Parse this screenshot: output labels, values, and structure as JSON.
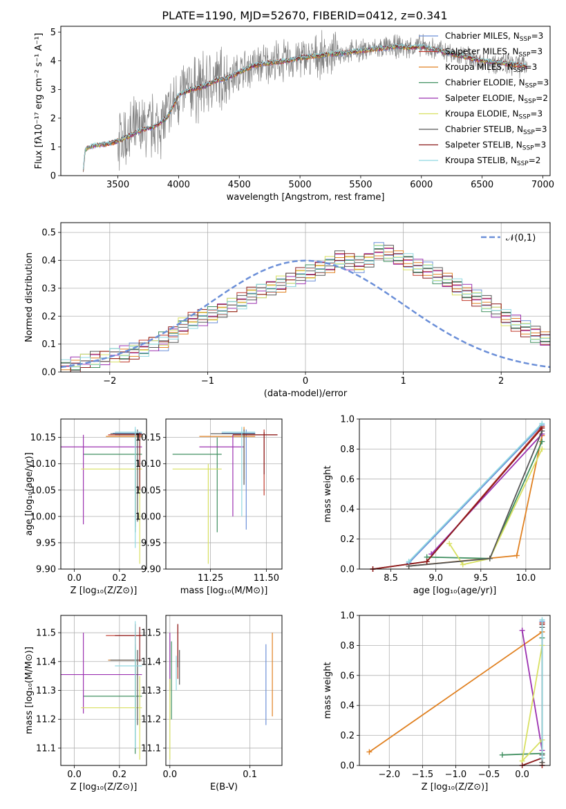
{
  "figure": {
    "title": "PLATE=1190, MJD=52670, FIBERID=0412, z=0.341",
    "fit_names": [
      "Chabrier MILES",
      "Salpeter MILES",
      "Kroupa MILES",
      "Chabrier ELODIE",
      "Salpeter ELODIE",
      "Kroupa ELODIE",
      "Chabrier STELIB",
      "Salpeter STELIB",
      "Kroupa STELIB"
    ],
    "fit_nssp": [
      3,
      3,
      3,
      3,
      2,
      3,
      3,
      3,
      2
    ],
    "fit_colors": [
      "#6b8fd8",
      "#c0392b",
      "#e08020",
      "#3f8f5f",
      "#9b30b0",
      "#d8e060",
      "#555555",
      "#8b1a1a",
      "#8fd8e0"
    ],
    "data_color": "#808080"
  },
  "chart_data": [
    {
      "id": "spectrum",
      "type": "line",
      "xlabel": "wavelength [Angstrom, rest frame]",
      "ylabel": "Flux [fλ10⁻¹⁷ erg cm⁻² s⁻¹ A⁻¹]",
      "xlim": [
        3030,
        7060
      ],
      "ylim": [
        0,
        5.2
      ],
      "xticks": [
        3500,
        4000,
        4500,
        5000,
        5500,
        6000,
        6500,
        7000
      ],
      "yticks": [
        0,
        1,
        2,
        3,
        4,
        5
      ],
      "grid": false,
      "legend": "right",
      "model_x": [
        3210,
        3230,
        3300,
        3400,
        3500,
        3600,
        3700,
        3800,
        3900,
        3950,
        4000,
        4100,
        4200,
        4300,
        4400,
        4500,
        4600,
        4700,
        4800,
        4900,
        5000,
        5100,
        5200,
        5300,
        5400,
        5500,
        5600,
        5700,
        5800,
        5900,
        6000,
        6100,
        6200,
        6300,
        6400,
        6500,
        6600,
        6700,
        6800,
        6870
      ],
      "model_y": [
        0.0,
        0.9,
        1.05,
        1.1,
        1.2,
        1.4,
        1.6,
        1.7,
        2.0,
        2.4,
        2.8,
        3.0,
        3.1,
        3.3,
        3.4,
        3.6,
        3.8,
        3.9,
        3.95,
        4.0,
        4.1,
        4.15,
        4.2,
        4.25,
        4.3,
        4.35,
        4.4,
        4.45,
        4.5,
        4.45,
        4.5,
        4.4,
        4.3,
        4.2,
        4.1,
        4.0,
        3.95,
        3.9,
        3.85,
        3.8
      ]
    },
    {
      "id": "residuals",
      "type": "histogram",
      "xlabel": "(data-model)/error",
      "ylabel": "Normed distribution",
      "xlim": [
        -2.5,
        2.5
      ],
      "ylim": [
        0,
        0.535
      ],
      "xticks": [
        -2,
        -1,
        0,
        1,
        2
      ],
      "yticks": [
        0.0,
        0.1,
        0.2,
        0.3,
        0.4,
        0.5
      ],
      "grid": true,
      "legend": "top-right",
      "legend_label": "𝒩(0,1)",
      "bin_width": 0.1,
      "series": [
        {
          "values": [
            0.02,
            0.03,
            0.04,
            0.05,
            0.05,
            0.06,
            0.07,
            0.08,
            0.08,
            0.1,
            0.1,
            0.13,
            0.16,
            0.18,
            0.19,
            0.2,
            0.22,
            0.24,
            0.25,
            0.27,
            0.29,
            0.3,
            0.31,
            0.33,
            0.34,
            0.35,
            0.37,
            0.38,
            0.41,
            0.39,
            0.38,
            0.4,
            0.44,
            0.43,
            0.41,
            0.4,
            0.38,
            0.37,
            0.35,
            0.33,
            0.31,
            0.29,
            0.27,
            0.25,
            0.22,
            0.2,
            0.18,
            0.16,
            0.14,
            0.12
          ]
        },
        {
          "values": [
            0.01,
            0.02,
            0.04,
            0.04,
            0.05,
            0.06,
            0.06,
            0.07,
            0.09,
            0.1,
            0.12,
            0.15,
            0.17,
            0.19,
            0.2,
            0.21,
            0.23,
            0.24,
            0.26,
            0.28,
            0.29,
            0.31,
            0.32,
            0.33,
            0.35,
            0.36,
            0.38,
            0.39,
            0.4,
            0.4,
            0.39,
            0.41,
            0.43,
            0.42,
            0.4,
            0.39,
            0.37,
            0.36,
            0.34,
            0.32,
            0.3,
            0.28,
            0.26,
            0.24,
            0.22,
            0.19,
            0.17,
            0.15,
            0.13,
            0.11
          ]
        }
      ]
    },
    {
      "id": "age-vs-Z",
      "type": "errorbar",
      "xlabel": "Z [log₁₀(Z/Z⊙)]",
      "ylabel": "age  [log₁₀(age/yr)]",
      "xlim": [
        -0.06,
        0.32
      ],
      "ylim": [
        9.9,
        10.185
      ],
      "xticks": [
        0.0,
        0.2
      ],
      "yticks": [
        9.9,
        9.95,
        10.0,
        10.05,
        10.1,
        10.15
      ],
      "grid": true,
      "points": [
        {
          "x": 0.27,
          "y": 10.158,
          "x_lo": 0.17,
          "x_hi": 0.3,
          "y_lo": 9.98,
          "y_hi": 10.165
        },
        {
          "x": 0.27,
          "y": 10.155,
          "x_lo": 0.15,
          "x_hi": 0.3,
          "y_lo": 10.0,
          "y_hi": 10.16
        },
        {
          "x": 0.27,
          "y": 10.152,
          "x_lo": 0.14,
          "x_hi": 0.3,
          "y_lo": 10.01,
          "y_hi": 10.16
        },
        {
          "x": 0.27,
          "y": 10.118,
          "x_lo": 0.04,
          "x_hi": 0.3,
          "y_lo": 9.97,
          "y_hi": 10.15
        },
        {
          "x": 0.04,
          "y": 10.132,
          "x_lo": -0.06,
          "x_hi": 0.3,
          "y_lo": 9.985,
          "y_hi": 10.155
        },
        {
          "x": 0.29,
          "y": 10.09,
          "x_lo": 0.03,
          "x_hi": 0.3,
          "y_lo": 9.91,
          "y_hi": 10.1
        },
        {
          "x": 0.28,
          "y": 10.157,
          "x_lo": 0.16,
          "x_hi": 0.3,
          "y_lo": 9.99,
          "y_hi": 10.165
        },
        {
          "x": 0.29,
          "y": 10.155,
          "x_lo": 0.18,
          "x_hi": 0.3,
          "y_lo": 10.05,
          "y_hi": 10.16
        },
        {
          "x": 0.27,
          "y": 10.16,
          "x_lo": 0.18,
          "x_hi": 0.3,
          "y_lo": 9.94,
          "y_hi": 10.17
        }
      ]
    },
    {
      "id": "age-vs-mass",
      "type": "errorbar",
      "xlabel": "mass [log₁₀(M/M⊙)]",
      "ylabel": "",
      "xlim": [
        11.05,
        11.57
      ],
      "ylim": [
        9.9,
        10.185
      ],
      "xticks": [
        11.25,
        11.5
      ],
      "yticks": [
        9.9,
        9.95,
        10.0,
        10.05,
        10.1,
        10.15
      ],
      "grid": true,
      "points": [
        {
          "x": 11.41,
          "y": 10.158,
          "x_lo": 11.3,
          "x_hi": 11.45,
          "y_lo": 9.975,
          "y_hi": 10.165
        },
        {
          "x": 11.49,
          "y": 10.155,
          "x_lo": 11.35,
          "x_hi": 11.55,
          "y_lo": 10.04,
          "y_hi": 10.165
        },
        {
          "x": 11.4,
          "y": 10.152,
          "x_lo": 11.2,
          "x_hi": 11.45,
          "y_lo": 10.07,
          "y_hi": 10.17
        },
        {
          "x": 11.28,
          "y": 10.118,
          "x_lo": 11.08,
          "x_hi": 11.3,
          "y_lo": 9.97,
          "y_hi": 10.15
        },
        {
          "x": 11.35,
          "y": 10.132,
          "x_lo": 11.2,
          "x_hi": 11.4,
          "y_lo": 10.0,
          "y_hi": 10.155
        },
        {
          "x": 11.24,
          "y": 10.09,
          "x_lo": 11.08,
          "x_hi": 11.3,
          "y_lo": 9.91,
          "y_hi": 10.1
        },
        {
          "x": 11.4,
          "y": 10.157,
          "x_lo": 11.25,
          "x_hi": 11.45,
          "y_lo": 10.06,
          "y_hi": 10.165
        },
        {
          "x": 11.49,
          "y": 10.155,
          "x_lo": 11.35,
          "x_hi": 11.55,
          "y_lo": 10.08,
          "y_hi": 10.16
        },
        {
          "x": 11.39,
          "y": 10.16,
          "x_lo": 11.3,
          "x_hi": 11.45,
          "y_lo": 10.0,
          "y_hi": 10.17
        }
      ]
    },
    {
      "id": "weight-vs-age",
      "type": "line",
      "xlabel": "age  [log₁₀(age/yr)]",
      "ylabel": "mass weight",
      "xlim": [
        8.15,
        10.27
      ],
      "ylim": [
        0,
        1
      ],
      "xticks": [
        8.5,
        9.0,
        9.5,
        10.0
      ],
      "yticks": [
        0.0,
        0.2,
        0.4,
        0.6,
        0.8,
        1.0
      ],
      "grid": true,
      "series": [
        {
          "x": [
            8.7,
            10.18
          ],
          "y": [
            0.04,
            0.96
          ]
        },
        {
          "x": [
            8.3,
            8.9,
            10.18
          ],
          "y": [
            0.0,
            0.05,
            0.95
          ]
        },
        {
          "x": [
            8.7,
            9.9,
            10.18
          ],
          "y": [
            0.02,
            0.09,
            0.89
          ]
        },
        {
          "x": [
            8.9,
            9.6,
            10.18
          ],
          "y": [
            0.08,
            0.07,
            0.85
          ]
        },
        {
          "x": [
            8.95,
            10.18
          ],
          "y": [
            0.1,
            0.9
          ]
        },
        {
          "x": [
            9.15,
            9.3,
            9.6,
            10.18
          ],
          "y": [
            0.17,
            0.03,
            0.07,
            0.8
          ]
        },
        {
          "x": [
            8.7,
            9.6,
            10.18
          ],
          "y": [
            0.02,
            0.07,
            0.92
          ]
        },
        {
          "x": [
            8.3,
            8.9,
            10.18
          ],
          "y": [
            0.0,
            0.05,
            0.94
          ]
        },
        {
          "x": [
            8.7,
            10.18
          ],
          "y": [
            0.05,
            0.97
          ]
        }
      ]
    },
    {
      "id": "mass-vs-Z",
      "type": "errorbar",
      "xlabel": "Z [log₁₀(Z/Z⊙)]",
      "ylabel": "mass [log₁₀(M/M⊙)]",
      "xlim": [
        -0.06,
        0.32
      ],
      "ylim": [
        11.04,
        11.56
      ],
      "xticks": [
        0.0,
        0.2
      ],
      "yticks": [
        11.1,
        11.2,
        11.3,
        11.4,
        11.5
      ],
      "grid": true,
      "points": [
        {
          "x": 0.27,
          "y": 11.405,
          "x_lo": 0.15,
          "x_hi": 0.3,
          "y_lo": 11.19,
          "y_hi": 11.46
        },
        {
          "x": 0.27,
          "y": 11.49,
          "x_lo": 0.14,
          "x_hi": 0.3,
          "y_lo": 11.21,
          "y_hi": 11.53
        },
        {
          "x": 0.27,
          "y": 11.405,
          "x_lo": 0.15,
          "x_hi": 0.3,
          "y_lo": 11.21,
          "y_hi": 11.45
        },
        {
          "x": 0.27,
          "y": 11.28,
          "x_lo": 0.04,
          "x_hi": 0.3,
          "y_lo": 11.08,
          "y_hi": 11.45
        },
        {
          "x": 0.04,
          "y": 11.355,
          "x_lo": -0.06,
          "x_hi": 0.3,
          "y_lo": 11.22,
          "y_hi": 11.5
        },
        {
          "x": 0.29,
          "y": 11.24,
          "x_lo": 0.03,
          "x_hi": 0.3,
          "y_lo": 11.06,
          "y_hi": 11.35
        },
        {
          "x": 0.28,
          "y": 11.405,
          "x_lo": 0.16,
          "x_hi": 0.3,
          "y_lo": 11.18,
          "y_hi": 11.44
        },
        {
          "x": 0.29,
          "y": 11.49,
          "x_lo": 0.18,
          "x_hi": 0.3,
          "y_lo": 11.4,
          "y_hi": 11.52
        },
        {
          "x": 0.27,
          "y": 11.385,
          "x_lo": 0.18,
          "x_hi": 0.3,
          "y_lo": 11.1,
          "y_hi": 11.54
        }
      ]
    },
    {
      "id": "mass-vs-EBV",
      "type": "errorbar",
      "xlabel": "E(B-V)",
      "ylabel": "",
      "xlim": [
        -0.005,
        0.14
      ],
      "ylim": [
        11.04,
        11.56
      ],
      "xticks": [
        0.0,
        0.1
      ],
      "yticks": [
        11.1,
        11.2,
        11.3,
        11.4,
        11.5
      ],
      "grid": true,
      "points": [
        {
          "x": 0.12,
          "y": 11.32,
          "y_lo": 11.18,
          "y_hi": 11.46
        },
        {
          "x": 0.01,
          "y": 11.43,
          "y_lo": 11.34,
          "y_hi": 11.53
        },
        {
          "x": 0.128,
          "y": 11.4,
          "y_lo": 11.21,
          "y_hi": 11.5
        },
        {
          "x": 0.002,
          "y": 11.32,
          "y_lo": 11.2,
          "y_hi": 11.47
        },
        {
          "x": 0.0,
          "y": 11.4,
          "y_lo": 11.3,
          "y_hi": 11.5
        },
        {
          "x": 0.0,
          "y": 11.2,
          "y_lo": 11.06,
          "y_hi": 11.34
        },
        {
          "x": 0.012,
          "y": 11.38,
          "y_lo": 11.32,
          "y_hi": 11.44
        },
        {
          "x": 0.01,
          "y": 11.45,
          "y_lo": 11.38,
          "y_hi": 11.53
        },
        {
          "x": 0.008,
          "y": 11.36,
          "y_lo": 11.3,
          "y_hi": 11.42
        }
      ]
    },
    {
      "id": "weight-vs-Z",
      "type": "line",
      "xlabel": "Z [log₁₀(Z/Z⊙)]",
      "ylabel": "mass weight",
      "xlim": [
        -2.45,
        0.42
      ],
      "ylim": [
        0,
        1
      ],
      "xticks": [
        -2.0,
        -1.5,
        -1.0,
        -0.5,
        0.0
      ],
      "yticks": [
        0.0,
        0.2,
        0.4,
        0.6,
        0.8,
        1.0
      ],
      "grid": true,
      "series": [
        {
          "x": [
            0.3,
            0.3,
            0.3
          ],
          "y": [
            0.0,
            0.05,
            0.96
          ]
        },
        {
          "x": [
            0.3,
            0.3,
            0.3
          ],
          "y": [
            0.0,
            0.05,
            0.95
          ]
        },
        {
          "x": [
            -2.3,
            0.3,
            0.3
          ],
          "y": [
            0.09,
            0.89,
            0.02
          ]
        },
        {
          "x": [
            -0.3,
            0.3,
            0.3
          ],
          "y": [
            0.07,
            0.08,
            0.85
          ]
        },
        {
          "x": [
            0.0,
            0.3
          ],
          "y": [
            0.9,
            0.1
          ]
        },
        {
          "x": [
            0.3,
            0.0,
            0.3
          ],
          "y": [
            0.17,
            0.03,
            0.8
          ]
        },
        {
          "x": [
            0.3,
            0.3,
            0.3
          ],
          "y": [
            0.02,
            0.07,
            0.92
          ]
        },
        {
          "x": [
            0.0,
            0.3,
            0.3
          ],
          "y": [
            0.0,
            0.05,
            0.94
          ]
        },
        {
          "x": [
            0.3,
            0.3
          ],
          "y": [
            0.05,
            0.97
          ]
        }
      ]
    }
  ]
}
